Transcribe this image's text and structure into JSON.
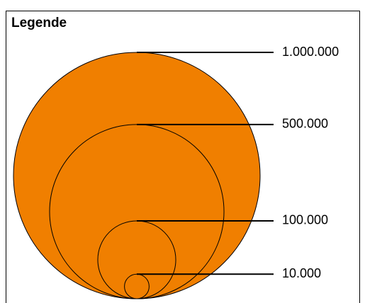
{
  "legend": {
    "title": "Legende",
    "items": [
      {
        "value": 1000000,
        "label": "1.000.000"
      },
      {
        "value": 500000,
        "label": "500.000"
      },
      {
        "value": 100000,
        "label": "100.000"
      },
      {
        "value": 10000,
        "label": "10.000"
      }
    ],
    "color": "#f07f00"
  }
}
